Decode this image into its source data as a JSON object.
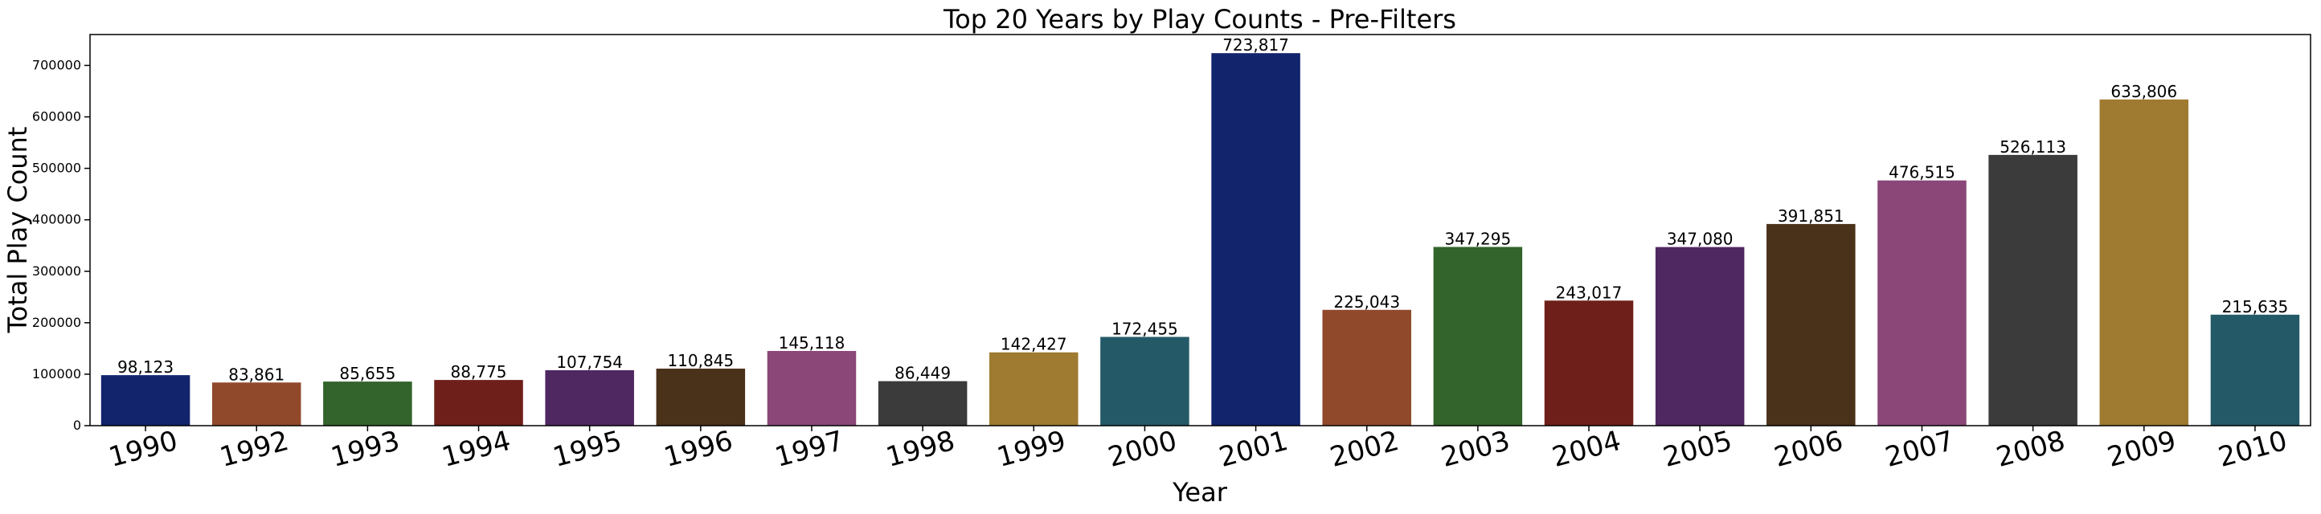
{
  "chart_data": {
    "type": "bar",
    "title": "Top 20 Years by Play Counts - Pre-Filters",
    "xlabel": "Year",
    "ylabel": "Total Play Count",
    "categories": [
      "1990",
      "1992",
      "1993",
      "1994",
      "1995",
      "1996",
      "1997",
      "1998",
      "1999",
      "2000",
      "2001",
      "2002",
      "2003",
      "2004",
      "2005",
      "2006",
      "2007",
      "2008",
      "2009",
      "2010"
    ],
    "values": [
      98123,
      83861,
      85655,
      88775,
      107754,
      110845,
      145118,
      86449,
      142427,
      172455,
      723817,
      225043,
      347295,
      243017,
      347080,
      391851,
      476515,
      526113,
      633806,
      215635
    ],
    "data_labels": [
      "98,123",
      "83,861",
      "85,655",
      "88,775",
      "107,754",
      "110,845",
      "145,118",
      "86,449",
      "142,427",
      "172,455",
      "723,817",
      "225,043",
      "347,295",
      "243,017",
      "347,080",
      "391,851",
      "476,515",
      "526,113",
      "633,806",
      "215,635"
    ],
    "yticks": [
      0,
      100000,
      200000,
      300000,
      400000,
      500000,
      600000,
      700000
    ],
    "ytick_labels": [
      "0",
      "100000",
      "200000",
      "300000",
      "400000",
      "500000",
      "600000",
      "700000"
    ],
    "ylim": [
      0,
      760000
    ],
    "grid": false,
    "legend": "none",
    "colors": [
      "#12246b",
      "#904a2b",
      "#32642b",
      "#6f1f19",
      "#4f2761",
      "#4a3119",
      "#8a4777",
      "#3b3b3b",
      "#9e7b31",
      "#245a67"
    ]
  }
}
